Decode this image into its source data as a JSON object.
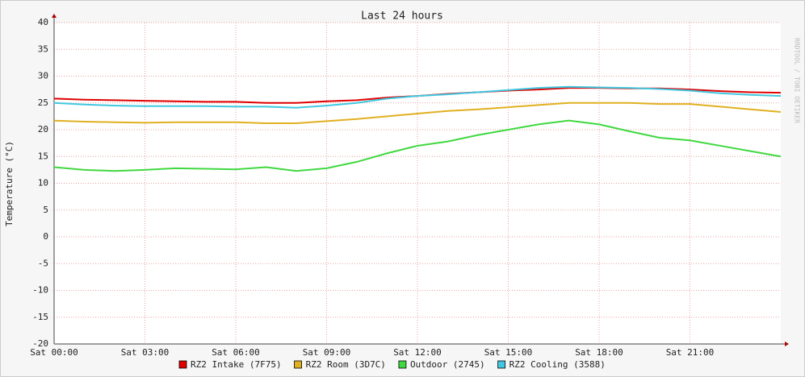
{
  "chart_data": {
    "type": "line",
    "title": "Last 24 hours",
    "y_label": "Temperature (°C)",
    "watermark": "RRDTOOL / TOBI OETIKER",
    "x": [
      0,
      1,
      2,
      3,
      4,
      5,
      6,
      7,
      8,
      9,
      10,
      11,
      12,
      13,
      14,
      15,
      16,
      17,
      18,
      19,
      20,
      21,
      22,
      23,
      24
    ],
    "series": [
      {
        "name": "RZ2 Intake (7F75)",
        "color": "#e00000",
        "values": [
          25.8,
          25.6,
          25.5,
          25.4,
          25.3,
          25.2,
          25.2,
          25.0,
          25.0,
          25.3,
          25.5,
          26.0,
          26.3,
          26.7,
          27.0,
          27.3,
          27.5,
          27.8,
          27.8,
          27.7,
          27.7,
          27.5,
          27.2,
          27.0,
          26.9
        ]
      },
      {
        "name": "RZ2 Room (3D7C)",
        "color": "#e0b020",
        "values": [
          21.7,
          21.5,
          21.4,
          21.3,
          21.4,
          21.4,
          21.4,
          21.2,
          21.2,
          21.6,
          22.0,
          22.5,
          23.0,
          23.5,
          23.8,
          24.2,
          24.6,
          25.0,
          25.0,
          25.0,
          24.8,
          24.8,
          24.3,
          23.8,
          23.3
        ]
      },
      {
        "name": "Outdoor (2745)",
        "color": "#40d840",
        "values": [
          13.0,
          12.5,
          12.3,
          12.5,
          12.8,
          12.7,
          12.6,
          13.0,
          12.3,
          12.8,
          14.0,
          15.6,
          17.0,
          17.8,
          19.0,
          20.0,
          21.0,
          21.7,
          21.0,
          19.7,
          18.5,
          18.0,
          17.0,
          16.0,
          15.0
        ]
      },
      {
        "name": "RZ2 Cooling (3588)",
        "color": "#40c8e0",
        "values": [
          25.0,
          24.7,
          24.5,
          24.4,
          24.4,
          24.4,
          24.3,
          24.3,
          24.1,
          24.5,
          25.0,
          25.8,
          26.3,
          26.6,
          27.0,
          27.4,
          27.8,
          28.0,
          27.9,
          27.8,
          27.6,
          27.3,
          26.8,
          26.5,
          26.3
        ]
      }
    ],
    "xlim": [
      0,
      24
    ],
    "xticks": [
      {
        "value": 0,
        "label": "Sat 00:00"
      },
      {
        "value": 3,
        "label": "Sat 03:00"
      },
      {
        "value": 6,
        "label": "Sat 06:00"
      },
      {
        "value": 9,
        "label": "Sat 09:00"
      },
      {
        "value": 12,
        "label": "Sat 12:00"
      },
      {
        "value": 15,
        "label": "Sat 15:00"
      },
      {
        "value": 18,
        "label": "Sat 18:00"
      },
      {
        "value": 21,
        "label": "Sat 21:00"
      }
    ],
    "ylim": [
      -20,
      40
    ],
    "yticks": [
      -20,
      -15,
      -10,
      -5,
      0,
      5,
      10,
      15,
      20,
      25,
      30,
      35,
      40
    ],
    "grid": true
  }
}
